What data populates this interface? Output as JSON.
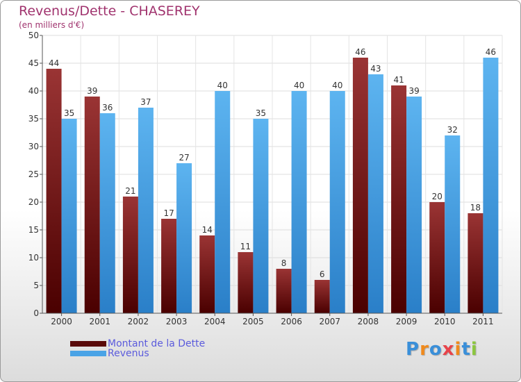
{
  "title": "Revenus/Dette - CHASEREY",
  "subtitle": "(en milliers d'€)",
  "logo": {
    "text": "Proxiti",
    "letters": [
      "P",
      "r",
      "o",
      "x",
      "i",
      "t",
      "i"
    ],
    "colors": [
      "#3a8fd9",
      "#f08a1c",
      "#3a8fd9",
      "#e8434a",
      "#f08a1c",
      "#3a8fd9",
      "#8cc63f"
    ]
  },
  "chart_data": {
    "type": "bar",
    "categories": [
      "2000",
      "2001",
      "2002",
      "2003",
      "2004",
      "2005",
      "2006",
      "2007",
      "2008",
      "2009",
      "2010",
      "2011"
    ],
    "series": [
      {
        "name": "Montant de la Dette",
        "values": [
          44,
          39,
          21,
          17,
          14,
          11,
          8,
          6,
          46,
          41,
          20,
          18
        ],
        "color": "#7a1a1a"
      },
      {
        "name": "Revenus",
        "values": [
          35,
          36,
          37,
          27,
          40,
          35,
          40,
          40,
          43,
          39,
          32,
          46
        ],
        "color": "#4aa3e6"
      }
    ],
    "ylim": [
      0,
      50
    ],
    "yticks": [
      0,
      5,
      10,
      15,
      20,
      25,
      30,
      35,
      40,
      45,
      50
    ],
    "grid": true,
    "legend": "bottom-left"
  }
}
